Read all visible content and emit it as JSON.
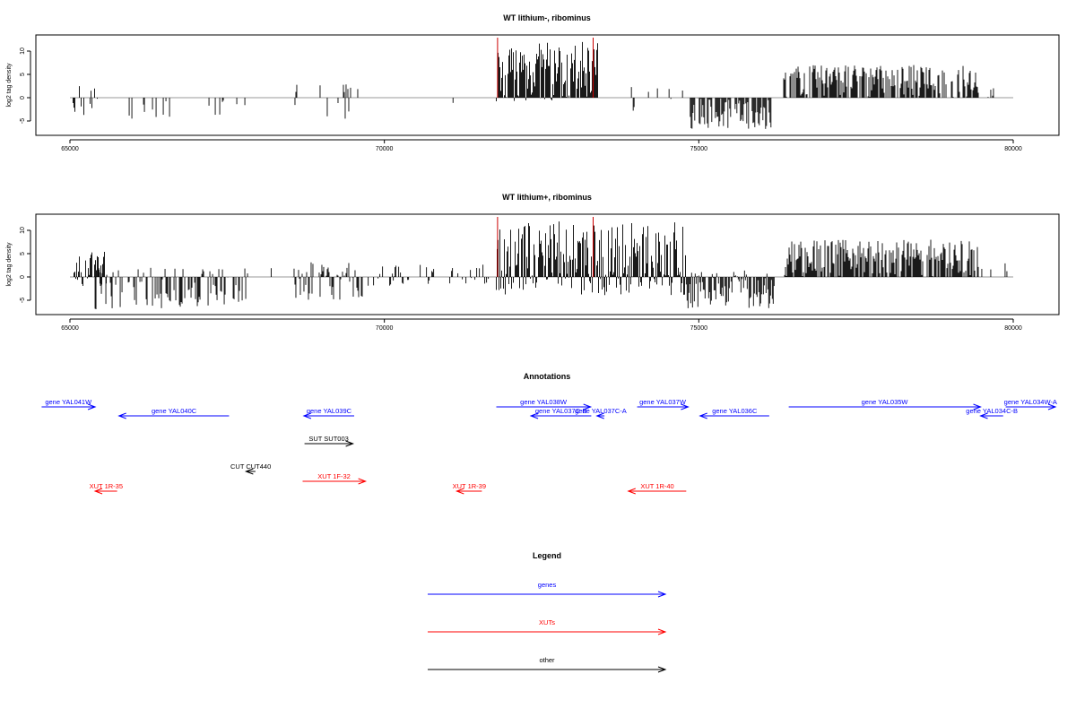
{
  "chart_data": [
    {
      "type": "bar",
      "title": "WT lithium-, ribominus",
      "ylabel": "log2 tag density",
      "xlim": [
        65000,
        80000
      ],
      "ylim": [
        -7,
        13
      ],
      "x_ticks": [
        65000,
        70000,
        75000,
        80000
      ],
      "y_ticks": [
        -5,
        0,
        5,
        10
      ],
      "marker_color": "#cc0000",
      "marker_positions": [
        71800,
        73320
      ],
      "segments": [
        {
          "start": 65050,
          "end": 65450,
          "min": -4,
          "max": 3.5,
          "density": 0.35
        },
        {
          "start": 65500,
          "end": 67800,
          "min": -4.5,
          "max": 0,
          "density": 0.12
        },
        {
          "start": 68550,
          "end": 69600,
          "min": -5,
          "max": 3,
          "density": 0.2
        },
        {
          "start": 70550,
          "end": 71300,
          "min": -2,
          "max": 1,
          "density": 0.03
        },
        {
          "start": 71780,
          "end": 73400,
          "min": -1,
          "max": 12,
          "density": 0.95
        },
        {
          "start": 73700,
          "end": 74750,
          "min": -3,
          "max": 3,
          "density": 0.05
        },
        {
          "start": 74850,
          "end": 76150,
          "min": -7,
          "max": 0,
          "density": 0.8
        },
        {
          "start": 76350,
          "end": 79450,
          "min": 0,
          "max": 7,
          "density": 0.75
        },
        {
          "start": 79600,
          "end": 79700,
          "min": 0,
          "max": 2.5,
          "density": 0.2
        }
      ]
    },
    {
      "type": "bar",
      "title": "WT lithium+, ribominus",
      "ylabel": "log2 tag density",
      "xlim": [
        65000,
        80000
      ],
      "ylim": [
        -7,
        13
      ],
      "x_ticks": [
        65000,
        70000,
        75000,
        80000
      ],
      "y_ticks": [
        -5,
        0,
        5,
        10
      ],
      "marker_color": "#cc0000",
      "marker_positions": [
        71800,
        73320
      ],
      "segments": [
        {
          "start": 65050,
          "end": 65600,
          "min": -2,
          "max": 5.5,
          "density": 0.75
        },
        {
          "start": 65400,
          "end": 67850,
          "min": -7,
          "max": 2,
          "density": 0.55
        },
        {
          "start": 68100,
          "end": 68300,
          "min": 0,
          "max": 2,
          "density": 0.1
        },
        {
          "start": 68550,
          "end": 69650,
          "min": -5,
          "max": 3.5,
          "density": 0.6
        },
        {
          "start": 69700,
          "end": 71700,
          "min": -2,
          "max": 3,
          "density": 0.25
        },
        {
          "start": 71780,
          "end": 74800,
          "min": -4,
          "max": 12,
          "density": 0.95
        },
        {
          "start": 74800,
          "end": 76200,
          "min": -7,
          "max": 1.5,
          "density": 0.8
        },
        {
          "start": 76350,
          "end": 79450,
          "min": 0,
          "max": 8,
          "density": 0.85
        },
        {
          "start": 79500,
          "end": 80000,
          "min": -1,
          "max": 3,
          "density": 0.15
        }
      ]
    }
  ],
  "annotations": {
    "title": "Annotations",
    "features": [
      {
        "label": "gene YAL041W",
        "start": 64550,
        "end": 65400,
        "strand": "+",
        "kind": "gene",
        "row": 0
      },
      {
        "label": "gene YAL040C",
        "start": 65780,
        "end": 67530,
        "strand": "-",
        "kind": "gene",
        "row": 1
      },
      {
        "label": "gene YAL039C",
        "start": 68720,
        "end": 69520,
        "strand": "-",
        "kind": "gene",
        "row": 1
      },
      {
        "label": "gene YAL038W",
        "start": 71780,
        "end": 73280,
        "strand": "+",
        "kind": "gene",
        "row": 0
      },
      {
        "label": "gene YAL037C-B",
        "start": 72330,
        "end": 73290,
        "strand": "-",
        "kind": "gene",
        "row": 1
      },
      {
        "label": "gene YAL037C-A",
        "start": 73380,
        "end": 73500,
        "strand": "-",
        "kind": "gene",
        "row": 1
      },
      {
        "label": "gene YAL037W",
        "start": 74020,
        "end": 74830,
        "strand": "+",
        "kind": "gene",
        "row": 0
      },
      {
        "label": "gene YAL036C",
        "start": 75020,
        "end": 76120,
        "strand": "-",
        "kind": "gene",
        "row": 1
      },
      {
        "label": "gene YAL035W",
        "start": 76430,
        "end": 79480,
        "strand": "+",
        "kind": "gene",
        "row": 0
      },
      {
        "label": "gene YAL034C-B",
        "start": 79480,
        "end": 79840,
        "strand": "-",
        "kind": "gene",
        "row": 1
      },
      {
        "label": "gene YAL034W-A",
        "start": 79880,
        "end": 80880,
        "strand": "+",
        "kind": "gene",
        "row": 0
      },
      {
        "label": "SUT SUT003",
        "start": 68730,
        "end": 69500,
        "strand": "+",
        "kind": "other",
        "row": 3
      },
      {
        "label": "CUT CUT440",
        "start": 67800,
        "end": 67950,
        "strand": "-",
        "kind": "other",
        "row": 5
      },
      {
        "label": "XUT 1F-32",
        "start": 68700,
        "end": 69700,
        "strand": "+",
        "kind": "xut",
        "row": 6
      },
      {
        "label": "XUT 1R-35",
        "start": 65400,
        "end": 65750,
        "strand": "-",
        "kind": "xut",
        "row": 7
      },
      {
        "label": "XUT 1R-39",
        "start": 71150,
        "end": 71550,
        "strand": "-",
        "kind": "xut",
        "row": 7
      },
      {
        "label": "XUT 1R-40",
        "start": 73880,
        "end": 74800,
        "strand": "-",
        "kind": "xut",
        "row": 7
      }
    ]
  },
  "legend": {
    "title": "Legend",
    "items": [
      {
        "label": "genes",
        "color": "#0000ff"
      },
      {
        "label": "XUTs",
        "color": "#ff0000"
      },
      {
        "label": "other",
        "color": "#000000"
      }
    ]
  },
  "colors": {
    "gene": "#0000ff",
    "xut": "#ff0000",
    "other": "#000000",
    "baseline": "#999999"
  }
}
